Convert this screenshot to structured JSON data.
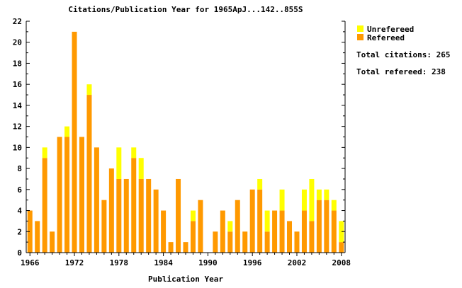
{
  "chart_data": {
    "type": "bar",
    "stacked": true,
    "title": "Citations/Publication Year for 1965ApJ...142..855S",
    "xlabel": "Publication Year",
    "ylabel": "",
    "ylim": [
      0,
      22
    ],
    "yticks": [
      0,
      2,
      4,
      6,
      8,
      10,
      12,
      14,
      16,
      18,
      20,
      22
    ],
    "xticks": [
      1966,
      1972,
      1978,
      1984,
      1990,
      1996,
      2002,
      2008
    ],
    "grid": false,
    "legend_position": "top-right",
    "colors": {
      "refereed": "#ff9900",
      "unrefereed": "#ffff00"
    },
    "categories": [
      1966,
      1967,
      1968,
      1969,
      1970,
      1971,
      1972,
      1973,
      1974,
      1975,
      1976,
      1977,
      1978,
      1979,
      1980,
      1981,
      1982,
      1983,
      1984,
      1985,
      1986,
      1987,
      1988,
      1989,
      1990,
      1991,
      1992,
      1993,
      1994,
      1995,
      1996,
      1997,
      1998,
      1999,
      2000,
      2001,
      2002,
      2003,
      2004,
      2005,
      2006,
      2007,
      2008
    ],
    "series": [
      {
        "name": "Refereed",
        "values": [
          4,
          3,
          9,
          2,
          11,
          11,
          21,
          11,
          15,
          10,
          5,
          8,
          7,
          7,
          9,
          7,
          7,
          6,
          4,
          1,
          7,
          1,
          3,
          5,
          0,
          2,
          4,
          2,
          5,
          2,
          6,
          6,
          2,
          4,
          4,
          3,
          2,
          4,
          3,
          5,
          5,
          4,
          1
        ]
      },
      {
        "name": "Unrefereed",
        "values": [
          0,
          0,
          1,
          0,
          0,
          1,
          0,
          0,
          1,
          0,
          0,
          0,
          3,
          0,
          1,
          2,
          0,
          0,
          0,
          0,
          0,
          0,
          1,
          0,
          0,
          0,
          0,
          1,
          0,
          0,
          0,
          1,
          2,
          0,
          2,
          0,
          0,
          2,
          4,
          1,
          1,
          1,
          2
        ]
      }
    ]
  },
  "legend": {
    "unrefereed": "Unrefereed",
    "refereed": "Refereed"
  },
  "stats": {
    "total_citations": "Total citations: 265",
    "total_refereed": "Total refereed: 238"
  }
}
